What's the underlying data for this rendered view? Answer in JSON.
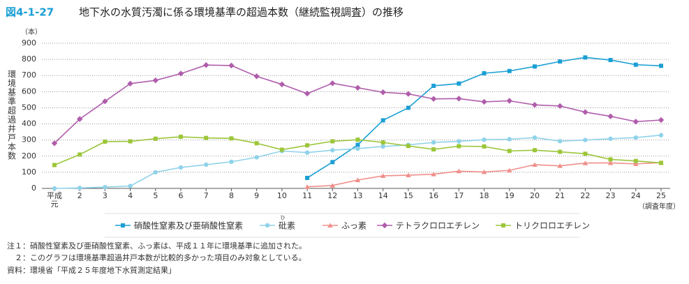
{
  "chart_data": {
    "type": "line",
    "figure_number": "図4-1-27",
    "title": "地下水の水質汚濁に係る環境基準の超過本数（継続監視調査）の推移",
    "y_unit": "（本）",
    "y_label": "環境基準超過井戸本数",
    "x_label": "（調査年度）",
    "categories": [
      "平成元",
      "2",
      "3",
      "4",
      "5",
      "6",
      "7",
      "8",
      "9",
      "10",
      "11",
      "12",
      "13",
      "14",
      "15",
      "16",
      "17",
      "18",
      "19",
      "20",
      "21",
      "22",
      "23",
      "24",
      "25"
    ],
    "ylim": [
      0,
      900
    ],
    "yticks": [
      0,
      100,
      200,
      300,
      400,
      500,
      600,
      700,
      800,
      900
    ],
    "grid": true,
    "series": [
      {
        "name": "硝酸性窒素及び亜硝酸性窒素",
        "color": "#1a9fd4",
        "marker": "square",
        "values": [
          null,
          null,
          null,
          null,
          null,
          null,
          null,
          null,
          null,
          null,
          65,
          163,
          270,
          422,
          500,
          636,
          650,
          714,
          728,
          756,
          787,
          812,
          796,
          767,
          760
        ]
      },
      {
        "name": "砒素",
        "ruby": "ひ",
        "color": "#8fd2ea",
        "marker": "circle",
        "values": [
          0,
          3,
          8,
          15,
          100,
          130,
          147,
          165,
          193,
          232,
          222,
          237,
          247,
          260,
          270,
          285,
          292,
          302,
          305,
          315,
          293,
          300,
          308,
          315,
          330
        ]
      },
      {
        "name": "ふっ素",
        "color": "#f08f8a",
        "marker": "triangle",
        "values": [
          null,
          null,
          null,
          null,
          null,
          null,
          null,
          null,
          null,
          null,
          10,
          18,
          52,
          78,
          82,
          88,
          107,
          102,
          112,
          147,
          140,
          157,
          158,
          152,
          160
        ]
      },
      {
        "name": "テトラクロロエチレン",
        "color": "#b05dac",
        "marker": "diamond",
        "values": [
          280,
          430,
          540,
          650,
          670,
          712,
          765,
          762,
          695,
          645,
          588,
          652,
          624,
          596,
          586,
          555,
          557,
          537,
          543,
          518,
          511,
          473,
          447,
          414,
          424
        ]
      },
      {
        "name": "トリクロロエチレン",
        "color": "#9cc63a",
        "marker": "square",
        "values": [
          145,
          210,
          290,
          292,
          308,
          320,
          313,
          310,
          280,
          240,
          267,
          292,
          302,
          285,
          263,
          242,
          262,
          260,
          232,
          237,
          227,
          215,
          180,
          170,
          158
        ]
      }
    ],
    "notes": [
      "注１：硝酸性窒素及び亜硝酸性窒素、ふっ素は、平成１１年に環境基準に追加された。",
      "　２：このグラフは環境基準超過井戸本数が比較的多かった項目のみ対象としている。"
    ],
    "source": "資料：環境省「平成２５年度地下水質測定結果」"
  }
}
